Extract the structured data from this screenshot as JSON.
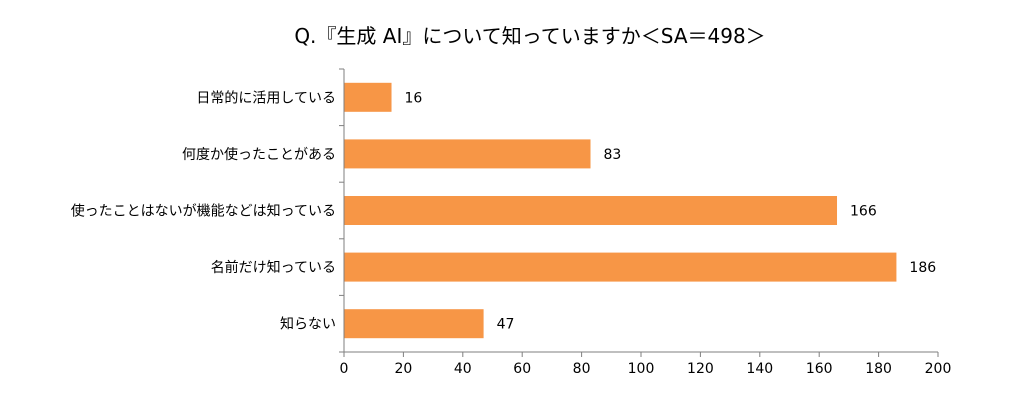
{
  "chart_data": {
    "type": "bar",
    "orientation": "horizontal",
    "title": "Q.『生成 AI』について知っていますか＜SA＝498＞",
    "categories": [
      "日常的に活用している",
      "何度か使ったことがある",
      "使ったことはないが機能などは知っている",
      "名前だけ知っている",
      "知らない"
    ],
    "values": [
      16,
      83,
      166,
      186,
      47
    ],
    "xlim": [
      0,
      200
    ],
    "xticks": [
      0,
      20,
      40,
      60,
      80,
      100,
      120,
      140,
      160,
      180,
      200
    ],
    "grid": false,
    "legend": false,
    "bar_color": "#F79646",
    "axis_color": "#7F7F7F"
  }
}
